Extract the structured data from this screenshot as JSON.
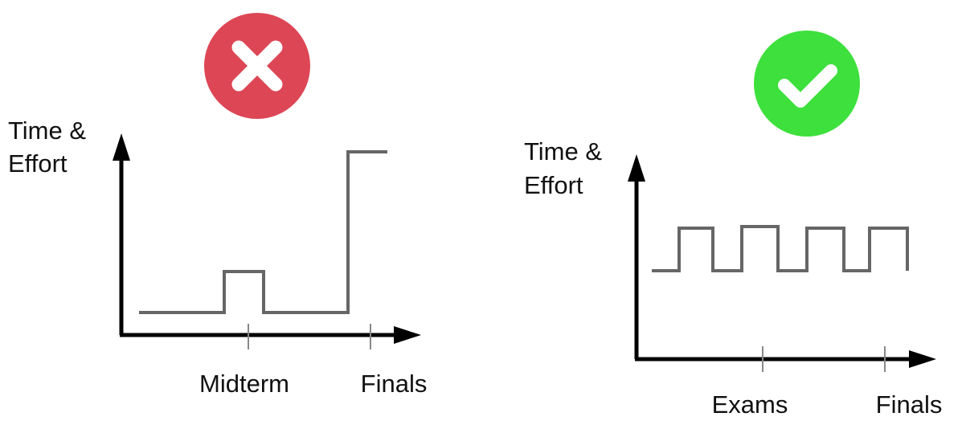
{
  "colors": {
    "bad": "#dd4655",
    "good": "#3de03c",
    "line": "#666666",
    "axis": "#000000",
    "tick": "#888888"
  },
  "left_panel": {
    "status_icon": "x-icon",
    "ylabel_line1": "Time &",
    "ylabel_line2": "Effort",
    "tick_labels": [
      "Midterm",
      "Finals"
    ]
  },
  "right_panel": {
    "status_icon": "check-icon",
    "ylabel_line1": "Time &",
    "ylabel_line2": "Effort",
    "tick_labels": [
      "Exams",
      "Finals"
    ]
  }
}
